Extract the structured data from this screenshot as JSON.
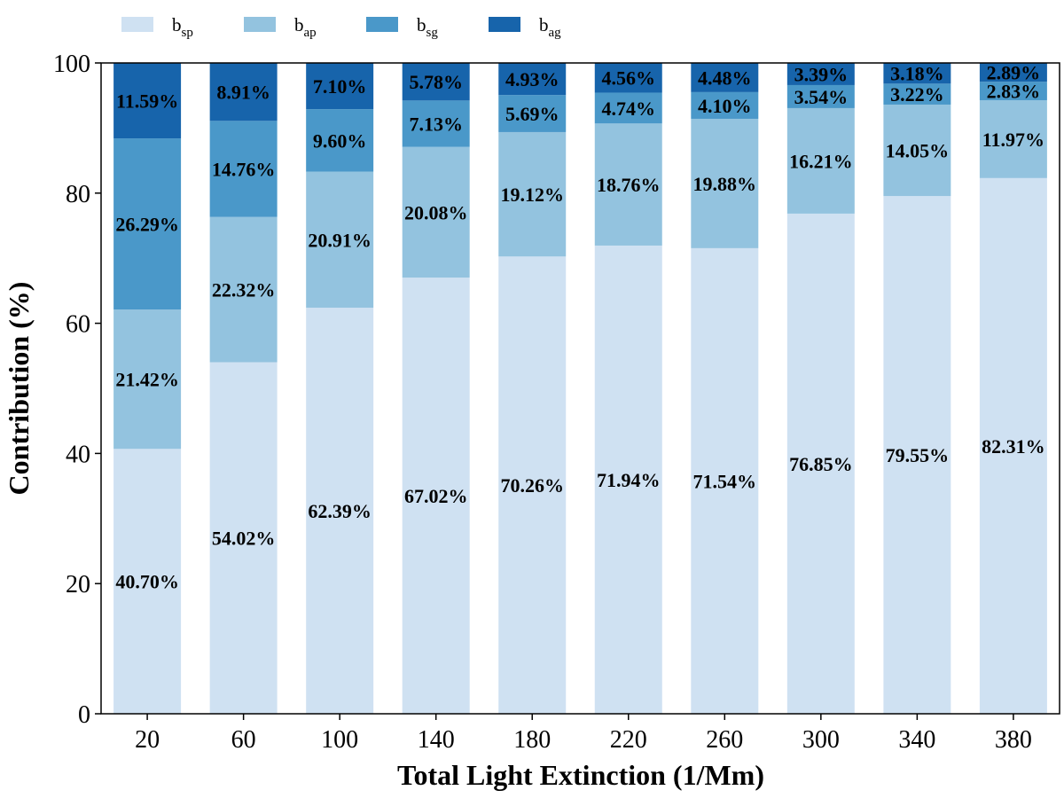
{
  "chart_data": {
    "type": "bar",
    "stacked": true,
    "xlabel": "Total Light Extinction (1/Mm)",
    "ylabel": "Contribution (%)",
    "ylim": [
      0,
      100
    ],
    "yticks": [
      0,
      20,
      40,
      60,
      80,
      100
    ],
    "categories": [
      "20",
      "60",
      "100",
      "140",
      "180",
      "220",
      "260",
      "300",
      "340",
      "380"
    ],
    "legend_position": "top-left, outside plot",
    "series": [
      {
        "base": "b",
        "sub": "sp",
        "color": "#cfe1f2",
        "values": [
          40.7,
          54.02,
          62.39,
          67.02,
          70.26,
          71.94,
          71.54,
          76.85,
          79.55,
          82.31
        ],
        "labels": [
          "40.70%",
          "54.02%",
          "62.39%",
          "67.02%",
          "70.26%",
          "71.94%",
          "71.54%",
          "76.85%",
          "79.55%",
          "82.31%"
        ]
      },
      {
        "base": "b",
        "sub": "ap",
        "color": "#93c3df",
        "values": [
          21.42,
          22.32,
          20.91,
          20.08,
          19.12,
          18.76,
          19.88,
          16.21,
          14.05,
          11.97
        ],
        "labels": [
          "21.42%",
          "22.32%",
          "20.91%",
          "20.08%",
          "19.12%",
          "18.76%",
          "19.88%",
          "16.21%",
          "14.05%",
          "11.97%"
        ]
      },
      {
        "base": "b",
        "sub": "sg",
        "color": "#4a98c9",
        "values": [
          26.29,
          14.76,
          9.6,
          7.13,
          5.69,
          4.74,
          4.1,
          3.54,
          3.22,
          2.83
        ],
        "labels": [
          "26.29%",
          "14.76%",
          "9.60%",
          "7.13%",
          "5.69%",
          "4.74%",
          "4.10%",
          "3.54%",
          "3.22%",
          "2.83%"
        ]
      },
      {
        "base": "b",
        "sub": "ag",
        "color": "#1764ab",
        "values": [
          11.59,
          8.91,
          7.1,
          5.78,
          4.93,
          4.56,
          4.48,
          3.39,
          3.18,
          2.89
        ],
        "labels": [
          "11.59%",
          "8.91%",
          "7.10%",
          "5.78%",
          "4.93%",
          "4.56%",
          "4.48%",
          "3.39%",
          "3.18%",
          "2.89%"
        ]
      }
    ]
  }
}
